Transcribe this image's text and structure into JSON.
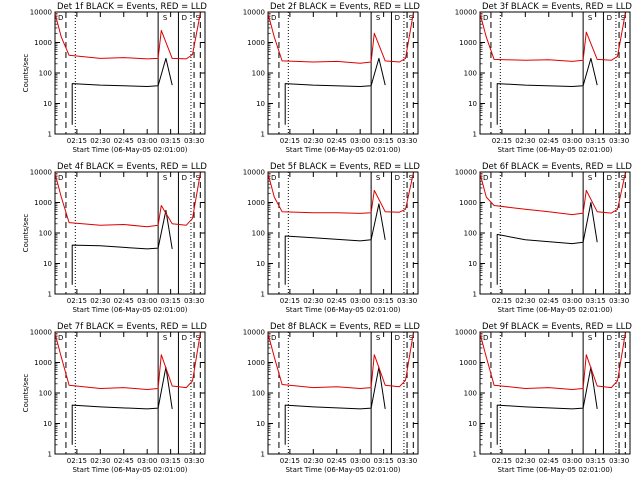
{
  "colors": {
    "events": "#000000",
    "lld": "#e00000",
    "axes": "#000000",
    "background": "#ffffff"
  },
  "chart_data": [
    {
      "type": "line",
      "title": "Det 1f BLACK = Events, RED = LLD",
      "xlabel": "Start Time (06-May-05 02:01:00)",
      "ylabel": "Counts/sec",
      "x_ticks": [
        "02:15",
        "02:30",
        "02:45",
        "03:00",
        "03:15",
        "03:30"
      ],
      "y_ticks": [
        "1",
        "10",
        "100",
        "1000",
        "10000"
      ],
      "y_scale": "log",
      "ylim": [
        1,
        10000
      ],
      "xlim": [
        "02:01",
        "03:37"
      ],
      "legend": "none",
      "grid": false,
      "dashed_markers": [
        "02:08",
        "03:30",
        "03:34"
      ],
      "dotted_markers": [
        "02:14",
        "03:28"
      ],
      "solid_markers": [
        "03:07",
        "03:20"
      ],
      "corner_labels": [
        "D",
        "S",
        "D",
        "S"
      ],
      "series": [
        {
          "name": "Events",
          "color": "#000000",
          "x": [
            "02:12",
            "02:12",
            "02:30",
            "03:00",
            "03:07",
            "03:12",
            "03:16"
          ],
          "values": [
            2,
            45,
            40,
            36,
            38,
            300,
            40
          ]
        },
        {
          "name": "LLD",
          "color": "#e00000",
          "x": [
            "02:01",
            "02:05",
            "02:10",
            "02:30",
            "02:45",
            "03:00",
            "03:07",
            "03:09",
            "03:16",
            "03:25",
            "03:29",
            "03:34"
          ],
          "values": [
            9000,
            1500,
            380,
            300,
            320,
            290,
            300,
            2500,
            300,
            290,
            400,
            9000
          ]
        }
      ]
    },
    {
      "type": "line",
      "title": "Det 2f BLACK = Events, RED = LLD",
      "xlabel": "Start Time (06-May-05 02:01:00)",
      "ylabel": "",
      "x_ticks": [
        "02:15",
        "02:30",
        "02:45",
        "03:00",
        "03:15",
        "03:30"
      ],
      "y_ticks": [
        "1",
        "10",
        "100",
        "1000",
        "10000"
      ],
      "y_scale": "log",
      "ylim": [
        1,
        10000
      ],
      "xlim": [
        "02:01",
        "03:37"
      ],
      "legend": "none",
      "grid": false,
      "dashed_markers": [
        "02:08",
        "03:30",
        "03:34"
      ],
      "dotted_markers": [
        "02:14",
        "03:28"
      ],
      "solid_markers": [
        "03:07",
        "03:20"
      ],
      "corner_labels": [
        "D",
        "S",
        "D",
        "S"
      ],
      "series": [
        {
          "name": "Events",
          "color": "#000000",
          "x": [
            "02:12",
            "02:12",
            "02:30",
            "03:00",
            "03:07",
            "03:12",
            "03:16"
          ],
          "values": [
            2,
            45,
            40,
            36,
            38,
            300,
            40
          ]
        },
        {
          "name": "LLD",
          "color": "#e00000",
          "x": [
            "02:01",
            "02:05",
            "02:10",
            "02:30",
            "02:45",
            "03:00",
            "03:07",
            "03:09",
            "03:16",
            "03:25",
            "03:29",
            "03:34"
          ],
          "values": [
            9000,
            1500,
            250,
            230,
            240,
            210,
            230,
            2000,
            250,
            230,
            300,
            9000
          ]
        }
      ]
    },
    {
      "type": "line",
      "title": "Det 3f BLACK = Events, RED = LLD",
      "xlabel": "Start Time (06-May-05 02:01:00)",
      "ylabel": "",
      "x_ticks": [
        "02:15",
        "02:30",
        "02:45",
        "03:00",
        "03:15",
        "03:30"
      ],
      "y_ticks": [
        "1",
        "10",
        "100",
        "1000",
        "10000"
      ],
      "y_scale": "log",
      "ylim": [
        1,
        10000
      ],
      "xlim": [
        "02:01",
        "03:37"
      ],
      "legend": "none",
      "grid": false,
      "dashed_markers": [
        "02:08",
        "03:30",
        "03:34"
      ],
      "dotted_markers": [
        "02:14",
        "03:28"
      ],
      "solid_markers": [
        "03:07",
        "03:20"
      ],
      "corner_labels": [
        "D",
        "S",
        "D",
        "S"
      ],
      "series": [
        {
          "name": "Events",
          "color": "#000000",
          "x": [
            "02:12",
            "02:12",
            "02:30",
            "03:00",
            "03:07",
            "03:12",
            "03:16"
          ],
          "values": [
            2,
            45,
            40,
            36,
            38,
            300,
            40
          ]
        },
        {
          "name": "LLD",
          "color": "#e00000",
          "x": [
            "02:01",
            "02:05",
            "02:10",
            "02:30",
            "02:45",
            "03:00",
            "03:07",
            "03:09",
            "03:16",
            "03:25",
            "03:29",
            "03:34"
          ],
          "values": [
            9000,
            1500,
            280,
            260,
            270,
            240,
            260,
            2200,
            280,
            260,
            350,
            9000
          ]
        }
      ]
    },
    {
      "type": "line",
      "title": "Det 4f BLACK = Events, RED = LLD",
      "xlabel": "Start Time (06-May-05 02:01:00)",
      "ylabel": "Counts/sec",
      "x_ticks": [
        "02:15",
        "02:30",
        "02:45",
        "03:00",
        "03:15",
        "03:30"
      ],
      "y_ticks": [
        "1",
        "10",
        "100",
        "1000",
        "10000"
      ],
      "y_scale": "log",
      "ylim": [
        1,
        10000
      ],
      "xlim": [
        "02:01",
        "03:37"
      ],
      "legend": "none",
      "grid": false,
      "dashed_markers": [
        "02:08",
        "03:30",
        "03:34"
      ],
      "dotted_markers": [
        "02:14",
        "03:28"
      ],
      "solid_markers": [
        "03:07",
        "03:20"
      ],
      "corner_labels": [
        "D",
        "S",
        "D",
        "S"
      ],
      "series": [
        {
          "name": "Events",
          "color": "#000000",
          "x": [
            "02:12",
            "02:12",
            "02:30",
            "03:00",
            "03:07",
            "03:12",
            "03:16"
          ],
          "values": [
            2,
            40,
            38,
            30,
            32,
            550,
            30
          ]
        },
        {
          "name": "LLD",
          "color": "#e00000",
          "x": [
            "02:01",
            "02:05",
            "02:10",
            "02:30",
            "02:45",
            "03:00",
            "03:07",
            "03:09",
            "03:16",
            "03:25",
            "03:29",
            "03:34"
          ],
          "values": [
            9000,
            1500,
            220,
            180,
            190,
            160,
            180,
            800,
            200,
            180,
            300,
            9000
          ]
        }
      ]
    },
    {
      "type": "line",
      "title": "Det 5f BLACK = Events, RED = LLD",
      "xlabel": "Start Time (06-May-05 02:01:00)",
      "ylabel": "",
      "x_ticks": [
        "02:15",
        "02:30",
        "02:45",
        "03:00",
        "03:15",
        "03:30"
      ],
      "y_ticks": [
        "1",
        "10",
        "100",
        "1000",
        "10000"
      ],
      "y_scale": "log",
      "ylim": [
        1,
        10000
      ],
      "xlim": [
        "02:01",
        "03:37"
      ],
      "legend": "none",
      "grid": false,
      "dashed_markers": [
        "02:08",
        "03:30",
        "03:34"
      ],
      "dotted_markers": [
        "02:14",
        "03:28"
      ],
      "solid_markers": [
        "03:07",
        "03:20"
      ],
      "corner_labels": [
        "D",
        "S",
        "D",
        "S"
      ],
      "series": [
        {
          "name": "Events",
          "color": "#000000",
          "x": [
            "02:12",
            "02:12",
            "02:30",
            "03:00",
            "03:07",
            "03:12",
            "03:16"
          ],
          "values": [
            2,
            80,
            70,
            55,
            60,
            900,
            60
          ]
        },
        {
          "name": "LLD",
          "color": "#e00000",
          "x": [
            "02:01",
            "02:05",
            "02:10",
            "02:30",
            "02:45",
            "03:00",
            "03:07",
            "03:09",
            "03:16",
            "03:25",
            "03:29",
            "03:34"
          ],
          "values": [
            9000,
            1500,
            500,
            460,
            460,
            440,
            460,
            2500,
            500,
            480,
            600,
            9000
          ]
        }
      ]
    },
    {
      "type": "line",
      "title": "Det 6f BLACK = Events, RED = LLD",
      "xlabel": "Start Time (06-May-05 02:01:00)",
      "ylabel": "",
      "x_ticks": [
        "02:15",
        "02:30",
        "02:45",
        "03:00",
        "03:15",
        "03:30"
      ],
      "y_ticks": [
        "1",
        "10",
        "100",
        "1000",
        "10000"
      ],
      "y_scale": "log",
      "ylim": [
        1,
        10000
      ],
      "xlim": [
        "02:01",
        "03:37"
      ],
      "legend": "none",
      "grid": false,
      "dashed_markers": [
        "02:08",
        "03:30",
        "03:34"
      ],
      "dotted_markers": [
        "02:14",
        "03:28"
      ],
      "solid_markers": [
        "03:07",
        "03:20"
      ],
      "corner_labels": [
        "D",
        "S",
        "D",
        "S"
      ],
      "series": [
        {
          "name": "Events",
          "color": "#000000",
          "x": [
            "02:12",
            "02:12",
            "02:30",
            "03:00",
            "03:07",
            "03:12",
            "03:16"
          ],
          "values": [
            2,
            90,
            60,
            45,
            50,
            1000,
            50
          ]
        },
        {
          "name": "LLD",
          "color": "#e00000",
          "x": [
            "02:01",
            "02:05",
            "02:10",
            "02:30",
            "02:45",
            "03:00",
            "03:07",
            "03:09",
            "03:16",
            "03:25",
            "03:29",
            "03:34"
          ],
          "values": [
            9000,
            1500,
            800,
            600,
            500,
            400,
            450,
            2500,
            500,
            450,
            600,
            9000
          ]
        }
      ]
    },
    {
      "type": "line",
      "title": "Det 7f BLACK = Events, RED = LLD",
      "xlabel": "Start Time (06-May-05 02:01:00)",
      "ylabel": "Counts/sec",
      "x_ticks": [
        "02:15",
        "02:30",
        "02:45",
        "03:00",
        "03:15",
        "03:30"
      ],
      "y_ticks": [
        "1",
        "10",
        "100",
        "1000",
        "10000"
      ],
      "y_scale": "log",
      "ylim": [
        1,
        10000
      ],
      "xlim": [
        "02:01",
        "03:37"
      ],
      "legend": "none",
      "grid": false,
      "dashed_markers": [
        "02:08",
        "03:30",
        "03:34"
      ],
      "dotted_markers": [
        "02:14",
        "03:28"
      ],
      "solid_markers": [
        "03:07",
        "03:20"
      ],
      "corner_labels": [
        "D",
        "S",
        "D",
        "S"
      ],
      "series": [
        {
          "name": "Events",
          "color": "#000000",
          "x": [
            "02:12",
            "02:12",
            "02:30",
            "03:00",
            "03:07",
            "03:12",
            "03:16"
          ],
          "values": [
            2,
            40,
            35,
            30,
            32,
            700,
            30
          ]
        },
        {
          "name": "LLD",
          "color": "#e00000",
          "x": [
            "02:01",
            "02:05",
            "02:10",
            "02:30",
            "02:45",
            "03:00",
            "03:07",
            "03:09",
            "03:16",
            "03:25",
            "03:29",
            "03:34"
          ],
          "values": [
            9000,
            1500,
            180,
            140,
            150,
            130,
            140,
            1800,
            170,
            150,
            250,
            9000
          ]
        }
      ]
    },
    {
      "type": "line",
      "title": "Det 8f BLACK = Events, RED = LLD",
      "xlabel": "Start Time (06-May-05 02:01:00)",
      "ylabel": "",
      "x_ticks": [
        "02:15",
        "02:30",
        "02:45",
        "03:00",
        "03:15",
        "03:30"
      ],
      "y_ticks": [
        "1",
        "10",
        "100",
        "1000",
        "10000"
      ],
      "y_scale": "log",
      "ylim": [
        1,
        10000
      ],
      "xlim": [
        "02:01",
        "03:37"
      ],
      "legend": "none",
      "grid": false,
      "dashed_markers": [
        "02:08",
        "03:30",
        "03:34"
      ],
      "dotted_markers": [
        "02:14",
        "03:28"
      ],
      "solid_markers": [
        "03:07",
        "03:20"
      ],
      "corner_labels": [
        "D",
        "S",
        "D",
        "S"
      ],
      "series": [
        {
          "name": "Events",
          "color": "#000000",
          "x": [
            "02:12",
            "02:12",
            "02:30",
            "03:00",
            "03:07",
            "03:12",
            "03:16"
          ],
          "values": [
            2,
            40,
            35,
            30,
            32,
            700,
            30
          ]
        },
        {
          "name": "LLD",
          "color": "#e00000",
          "x": [
            "02:01",
            "02:05",
            "02:10",
            "02:30",
            "02:45",
            "03:00",
            "03:07",
            "03:09",
            "03:16",
            "03:25",
            "03:29",
            "03:34"
          ],
          "values": [
            9000,
            1500,
            190,
            150,
            160,
            140,
            150,
            1800,
            180,
            160,
            260,
            9000
          ]
        }
      ]
    },
    {
      "type": "line",
      "title": "Det 9f BLACK = Events, RED = LLD",
      "xlabel": "Start Time (06-May-05 02:01:00)",
      "ylabel": "",
      "x_ticks": [
        "02:15",
        "02:30",
        "02:45",
        "03:00",
        "03:15",
        "03:30"
      ],
      "y_ticks": [
        "1",
        "10",
        "100",
        "1000",
        "10000"
      ],
      "y_scale": "log",
      "ylim": [
        1,
        10000
      ],
      "xlim": [
        "02:01",
        "03:37"
      ],
      "legend": "none",
      "grid": false,
      "dashed_markers": [
        "02:08",
        "03:30",
        "03:34"
      ],
      "dotted_markers": [
        "02:14",
        "03:28"
      ],
      "solid_markers": [
        "03:07",
        "03:20"
      ],
      "corner_labels": [
        "D",
        "S",
        "D",
        "S"
      ],
      "series": [
        {
          "name": "Events",
          "color": "#000000",
          "x": [
            "02:12",
            "02:12",
            "02:30",
            "03:00",
            "03:07",
            "03:12",
            "03:16"
          ],
          "values": [
            2,
            40,
            35,
            30,
            32,
            700,
            30
          ]
        },
        {
          "name": "LLD",
          "color": "#e00000",
          "x": [
            "02:01",
            "02:05",
            "02:10",
            "02:30",
            "02:45",
            "03:00",
            "03:07",
            "03:09",
            "03:16",
            "03:25",
            "03:29",
            "03:34"
          ],
          "values": [
            9000,
            1500,
            180,
            140,
            150,
            130,
            140,
            1800,
            170,
            150,
            250,
            9000
          ]
        }
      ]
    }
  ]
}
